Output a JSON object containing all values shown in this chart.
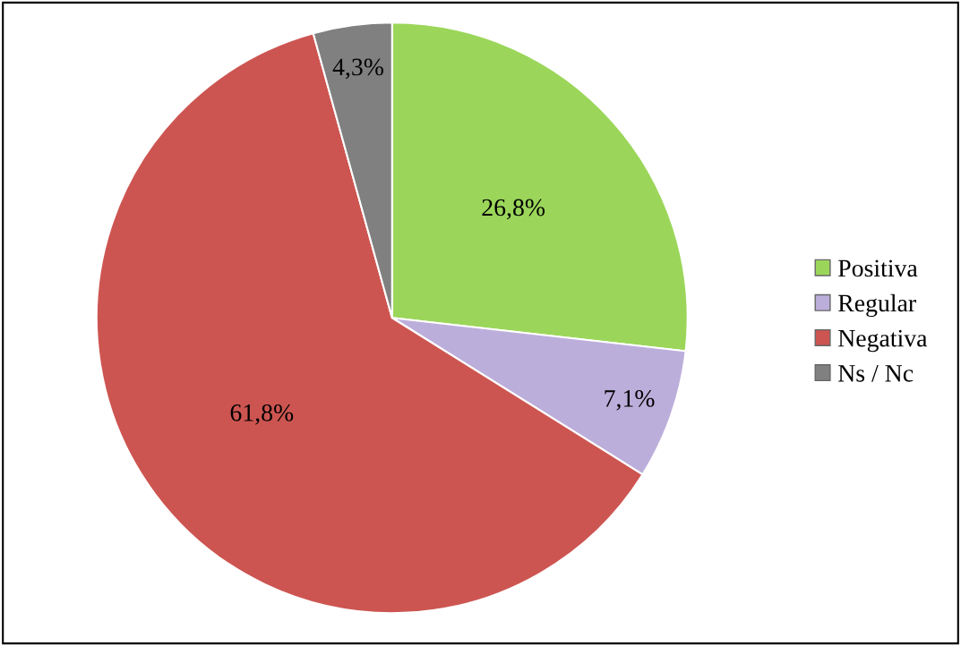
{
  "chart_data": {
    "type": "pie",
    "categories": [
      "Positiva",
      "Regular",
      "Negativa",
      "Ns / Nc"
    ],
    "values": [
      26.8,
      7.1,
      61.8,
      4.3
    ],
    "value_labels": [
      "26,8%",
      "7,1%",
      "61,8%",
      "4,3%"
    ],
    "colors": [
      "#9bd65a",
      "#bcaedb",
      "#cd5551",
      "#808080"
    ],
    "legend": "right"
  }
}
